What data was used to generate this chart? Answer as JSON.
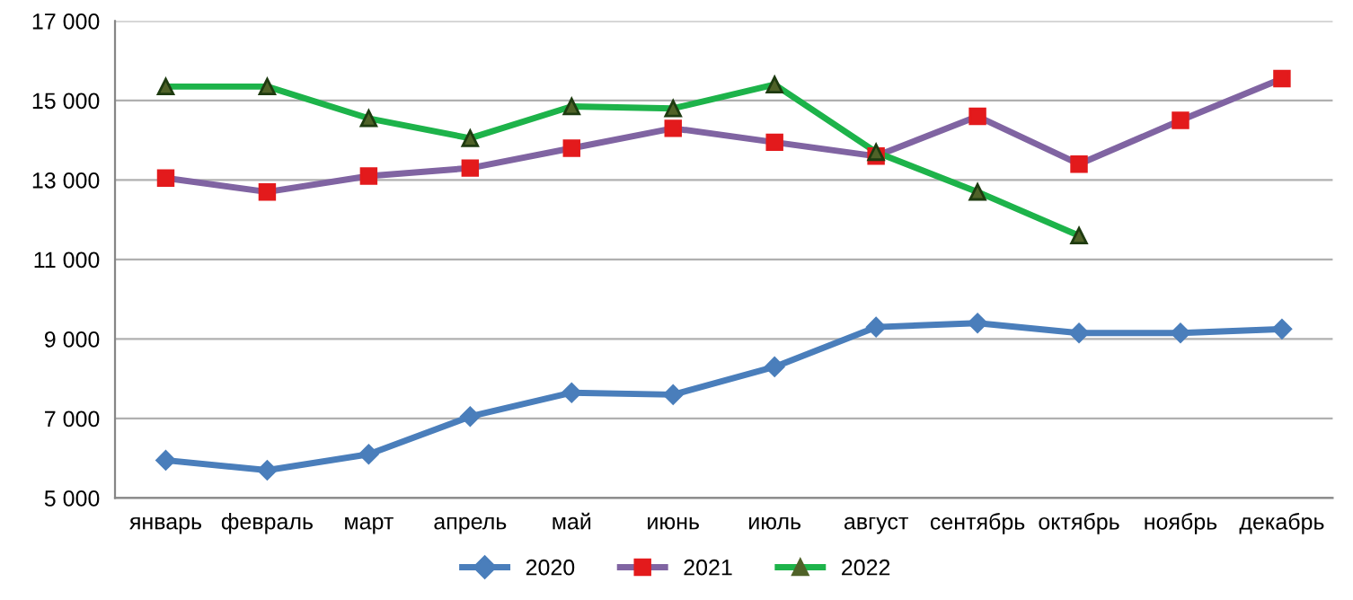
{
  "chart_data": {
    "type": "line",
    "categories": [
      "январь",
      "февраль",
      "март",
      "апрель",
      "май",
      "июнь",
      "июль",
      "август",
      "сентябрь",
      "октябрь",
      "ноябрь",
      "декабрь"
    ],
    "series": [
      {
        "name": "2020",
        "color": "#4a7ebb",
        "marker": "diamond",
        "values": [
          5950,
          5700,
          6100,
          7050,
          7650,
          7600,
          8300,
          9300,
          9400,
          9150,
          9150,
          9250
        ]
      },
      {
        "name": "2021",
        "color": "#8064a2",
        "marker": "square",
        "colors": [
          "#e31a1c",
          "#e31a1c",
          "#e31a1c",
          "#e31a1c",
          "#e31a1c",
          "#e31a1c",
          "#e31a1c",
          "#e31a1c",
          "#e31a1c",
          "#e31a1c",
          "#e31a1c",
          "#e31a1c"
        ],
        "values": [
          13050,
          12700,
          13100,
          13300,
          13800,
          14300,
          13950,
          13600,
          14600,
          13400,
          14500,
          15550
        ]
      },
      {
        "name": "2022",
        "color": "#1db34a",
        "marker": "triangle",
        "colors": [
          "#4f6228",
          "#4f6228",
          "#4f6228",
          "#4f6228",
          "#4f6228",
          "#4f6228",
          "#4f6228",
          "#4f6228",
          "#4f6228",
          "#4f6228",
          "#4f6228",
          "#4f6228"
        ],
        "values": [
          15350,
          15350,
          14550,
          14050,
          14850,
          14800,
          15400,
          13700,
          12700,
          11600,
          null,
          null
        ]
      }
    ],
    "ylim": [
      5000,
      17000
    ],
    "yticks": [
      {
        "value": 5000,
        "label": "5 000"
      },
      {
        "value": 7000,
        "label": "7 000"
      },
      {
        "value": 9000,
        "label": "9 000"
      },
      {
        "value": 11000,
        "label": "11 000"
      },
      {
        "value": 13000,
        "label": "13 000"
      },
      {
        "value": 15000,
        "label": "15 000"
      },
      {
        "value": 17000,
        "label": "17 000"
      }
    ],
    "grid": "y",
    "legend": "bottom",
    "line_style": "solid"
  }
}
